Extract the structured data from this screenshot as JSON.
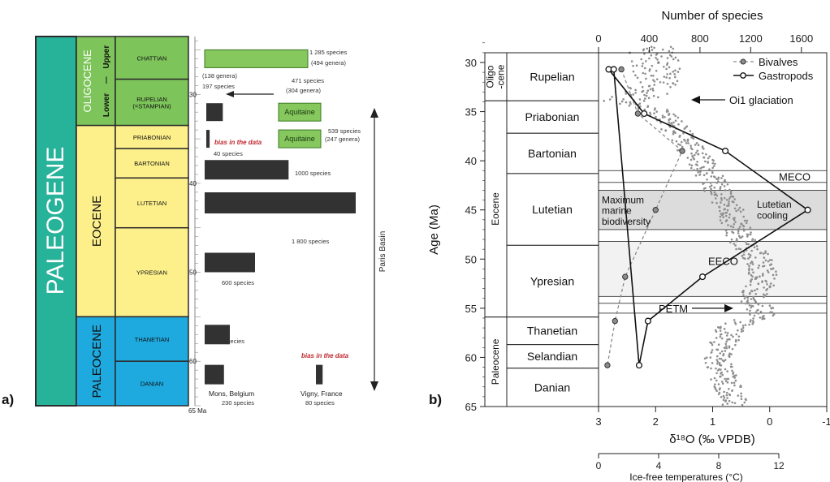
{
  "panel_a": {
    "label": "a)",
    "era": "PALEOGENE",
    "unit": "Ma",
    "epochs": [
      {
        "name": "OLIGOCENE",
        "color": "#7dc45a",
        "from": 23.5,
        "to": 33.5
      },
      {
        "name": "EOCENE",
        "color": "#fdf08b",
        "from": 33.5,
        "to": 55.0
      },
      {
        "name": "PALEOCENE",
        "color": "#1ea9df",
        "from": 55.0,
        "to": 65.0
      }
    ],
    "subepochs": [
      "Upper",
      "Lower"
    ],
    "stages": [
      {
        "name": "CHATTIAN",
        "from": 23.5,
        "to": 28.3
      },
      {
        "name": "RUPELIAN\n(=STAMPIAN)",
        "from": 28.3,
        "to": 33.5
      },
      {
        "name": "PRIABONIAN",
        "from": 33.5,
        "to": 36.1
      },
      {
        "name": "BARTONIAN",
        "from": 36.1,
        "to": 39.4
      },
      {
        "name": "LUTETIAN",
        "from": 39.4,
        "to": 45.0
      },
      {
        "name": "YPRESIAN",
        "from": 45.0,
        "to": 55.0
      },
      {
        "name": "THANETIAN",
        "from": 55.0,
        "to": 60.0
      },
      {
        "name": "DANIAN",
        "from": 60.0,
        "to": 65.0
      }
    ],
    "age_ticks": [
      "30",
      "40",
      "50",
      "60",
      "65 Ma"
    ],
    "bars": [
      {
        "stage": "CHATTIAN",
        "species": 1285,
        "kind": "green",
        "label": "1 285 species",
        "label2": "(494 genera)"
      },
      {
        "stage": "RUPELIAN",
        "species": 197,
        "kind": "dark",
        "label": "(138 genera)",
        "label2": "197 species"
      },
      {
        "stage": "RUPELIAN",
        "species": 471,
        "kind": "green",
        "label": "471 species",
        "label2": "(304 genera)",
        "text": "Aquitaine"
      },
      {
        "stage": "PRIABONIAN",
        "species": 40,
        "kind": "dark",
        "label": "40 species",
        "note": "bias in the data"
      },
      {
        "stage": "PRIABONIAN",
        "species": 539,
        "kind": "green",
        "label": "539 species",
        "label2": "(247 genera)",
        "text": "Aquitaine"
      },
      {
        "stage": "BARTONIAN",
        "species": 1000,
        "kind": "dark",
        "label": "1000 species"
      },
      {
        "stage": "LUTETIAN",
        "species": 1800,
        "kind": "dark",
        "label": "1 800 species"
      },
      {
        "stage": "YPRESIAN",
        "species": 600,
        "kind": "dark",
        "label": "600 species"
      },
      {
        "stage": "THANETIAN",
        "species": 300,
        "kind": "dark",
        "label": "300 species"
      },
      {
        "stage": "DANIAN",
        "species": 230,
        "kind": "dark",
        "label": "Mons, Belgium",
        "label2": "230 species"
      },
      {
        "stage": "DANIAN",
        "species": 80,
        "kind": "dark",
        "label": "Vigny, France",
        "label2": "80 species",
        "note": "bias in the data"
      }
    ],
    "paris_basin": "Paris Basin"
  },
  "panel_b": {
    "label": "b)",
    "top_axis_label": "Number of species",
    "top_ticks": [
      "0",
      "400",
      "800",
      "1200",
      "1600"
    ],
    "y_label": "Age (Ma)",
    "y_ticks": [
      "30",
      "35",
      "40",
      "45",
      "50",
      "55",
      "60",
      "65"
    ],
    "x_label": "δ¹⁸O (‰ VPDB)",
    "x_ticks": [
      "3",
      "2",
      "1",
      "0",
      "-1"
    ],
    "temp_label": "Ice-free temperatures (°C)",
    "temp_ticks": [
      "0",
      "4",
      "8",
      "12"
    ],
    "epochs": [
      {
        "name": "Oligo\n-cene",
        "from": 28.3,
        "to": 33.9
      },
      {
        "name": "Eocene",
        "from": 33.9,
        "to": 55.9
      },
      {
        "name": "Paleocene",
        "from": 55.9,
        "to": 65.5
      }
    ],
    "stages": [
      {
        "name": "Rupelian",
        "from": 28.3,
        "to": 33.9
      },
      {
        "name": "Priabonian",
        "from": 33.9,
        "to": 37.2
      },
      {
        "name": "Bartonian",
        "from": 37.2,
        "to": 41.3
      },
      {
        "name": "Lutetian",
        "from": 41.3,
        "to": 48.6
      },
      {
        "name": "Ypresian",
        "from": 48.6,
        "to": 55.9
      },
      {
        "name": "Thanetian",
        "from": 55.9,
        "to": 58.7
      },
      {
        "name": "Selandian",
        "from": 58.7,
        "to": 61.1
      },
      {
        "name": "Danian",
        "from": 61.1,
        "to": 65.5
      }
    ],
    "legend": [
      "Bivalves",
      "Gastropods"
    ],
    "annotations": {
      "oi1": "Oi1 glaciation",
      "meco": "MECO",
      "max_bio": "Maximum\nmarine\nbiodiversity",
      "lut_cool": "Lutetian\ncooling",
      "eeco": "EECO",
      "petm": "PETM"
    }
  },
  "chart_data": [
    {
      "type": "bar",
      "title": "",
      "xlabel": "",
      "ylabel": "Ma",
      "categories": [
        "Chattian",
        "Rupelian (Paris Basin)",
        "Rupelian (Aquitaine)",
        "Priabonian (Paris Basin)",
        "Priabonian (Aquitaine)",
        "Bartonian",
        "Lutetian",
        "Ypresian",
        "Thanetian",
        "Danian (Mons, Belgium)",
        "Danian (Vigny, France)"
      ],
      "values": [
        1285,
        197,
        471,
        40,
        539,
        1000,
        1800,
        600,
        300,
        230,
        80
      ]
    },
    {
      "type": "line",
      "xlabel": "Number of species",
      "ylabel": "Age (Ma)",
      "ylim": [
        65,
        28
      ],
      "xlim": [
        0,
        1800
      ],
      "series": [
        {
          "name": "Bivalves",
          "x": [
            180,
            310,
            660,
            450,
            210,
            130,
            70
          ],
          "y": [
            30.7,
            35.2,
            39.0,
            45.0,
            51.8,
            56.3,
            60.8
          ]
        },
        {
          "name": "Gastropods",
          "x": [
            80,
            360,
            1000,
            1650,
            820,
            390,
            320,
            120
          ],
          "y": [
            30.7,
            35.2,
            39.0,
            45.0,
            51.8,
            56.3,
            60.8,
            30.7
          ]
        }
      ]
    }
  ]
}
